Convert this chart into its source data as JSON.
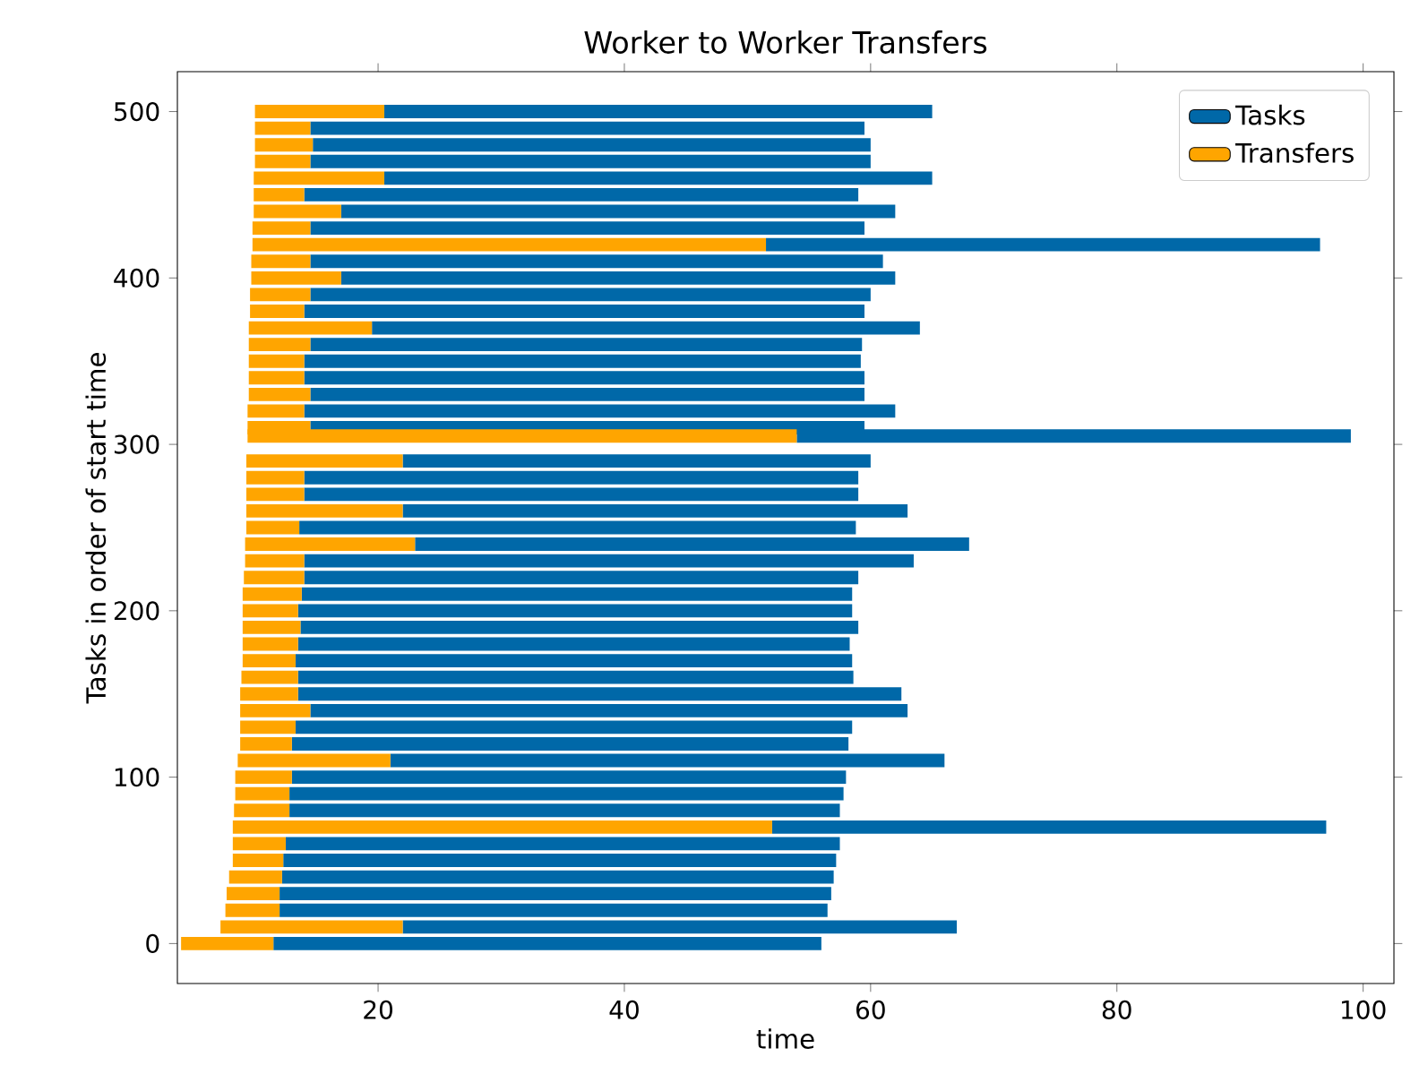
{
  "chart_data": {
    "type": "bar",
    "orientation": "horizontal",
    "title": "Worker to Worker Transfers",
    "xlabel": "time",
    "ylabel": "Tasks in order of start time",
    "x": [
      0,
      10,
      20,
      30,
      40,
      50,
      60,
      70,
      80,
      90,
      100,
      110,
      120,
      130,
      140,
      150,
      160,
      170,
      180,
      190,
      200,
      210,
      220,
      230,
      240,
      250,
      260,
      270,
      280,
      290,
      305,
      310,
      320,
      330,
      340,
      350,
      360,
      370,
      380,
      390,
      400,
      410,
      420,
      430,
      440,
      450,
      460,
      470,
      480,
      490,
      500
    ],
    "series": [
      {
        "name": "Tasks",
        "color": "#0068a8",
        "base": [
          11.5,
          22.0,
          12.0,
          12.0,
          12.2,
          12.3,
          12.5,
          52.0,
          12.8,
          12.8,
          13.0,
          21.0,
          13.0,
          13.3,
          14.5,
          13.5,
          13.5,
          13.3,
          13.5,
          13.7,
          13.5,
          13.8,
          14.0,
          14.0,
          23.0,
          13.6,
          22.0,
          14.0,
          14.0,
          22.0,
          54.0,
          14.5,
          14.0,
          14.5,
          14.0,
          14.0,
          14.5,
          19.5,
          14.0,
          14.5,
          17.0,
          14.5,
          51.5,
          14.5,
          17.0,
          14.0,
          20.5,
          14.5,
          14.7,
          14.5,
          20.5
        ],
        "values": [
          44.5,
          45.0,
          44.5,
          44.8,
          44.8,
          44.9,
          45.0,
          45.0,
          44.7,
          45.0,
          45.0,
          45.0,
          45.2,
          45.2,
          48.5,
          49.0,
          45.1,
          45.2,
          44.8,
          45.3,
          45.0,
          44.7,
          45.0,
          49.5,
          45.0,
          45.2,
          41.0,
          45.0,
          45.0,
          38.0,
          45.0,
          45.0,
          48.0,
          45.0,
          45.5,
          45.2,
          44.8,
          44.5,
          45.5,
          45.5,
          45.0,
          46.5,
          45.0,
          45.0,
          45.0,
          45.0,
          44.5,
          45.5,
          45.3,
          45.0,
          44.5
        ]
      },
      {
        "name": "Transfers",
        "color": "#ffa500",
        "base": [
          4.0,
          7.2,
          7.6,
          7.7,
          7.9,
          8.2,
          8.2,
          8.2,
          8.3,
          8.4,
          8.4,
          8.6,
          8.8,
          8.8,
          8.8,
          8.8,
          8.9,
          9.0,
          9.0,
          9.0,
          9.0,
          9.0,
          9.1,
          9.2,
          9.2,
          9.3,
          9.3,
          9.3,
          9.3,
          9.3,
          9.4,
          9.4,
          9.4,
          9.5,
          9.5,
          9.5,
          9.5,
          9.5,
          9.6,
          9.6,
          9.7,
          9.7,
          9.8,
          9.8,
          9.9,
          9.9,
          9.9,
          10.0,
          10.0,
          10.0,
          10.0
        ],
        "values": [
          7.5,
          14.8,
          4.4,
          4.3,
          4.3,
          4.1,
          4.3,
          43.8,
          4.5,
          4.4,
          4.6,
          12.4,
          4.2,
          4.5,
          5.7,
          4.7,
          4.6,
          4.3,
          4.5,
          4.7,
          4.5,
          4.8,
          4.9,
          4.8,
          13.8,
          4.3,
          12.7,
          4.7,
          4.7,
          12.7,
          44.6,
          5.1,
          4.6,
          5.0,
          4.5,
          4.5,
          5.0,
          10.0,
          4.4,
          4.9,
          7.3,
          4.8,
          41.7,
          4.7,
          7.1,
          4.1,
          10.6,
          4.5,
          4.7,
          4.5,
          10.5
        ]
      }
    ],
    "xlim": [
      3.7,
      102.5
    ],
    "xticks": [
      20,
      40,
      60,
      80,
      100
    ],
    "ylim": [
      -24,
      524
    ],
    "yticks": [
      0,
      100,
      200,
      300,
      400,
      500
    ],
    "legend": "top right"
  }
}
